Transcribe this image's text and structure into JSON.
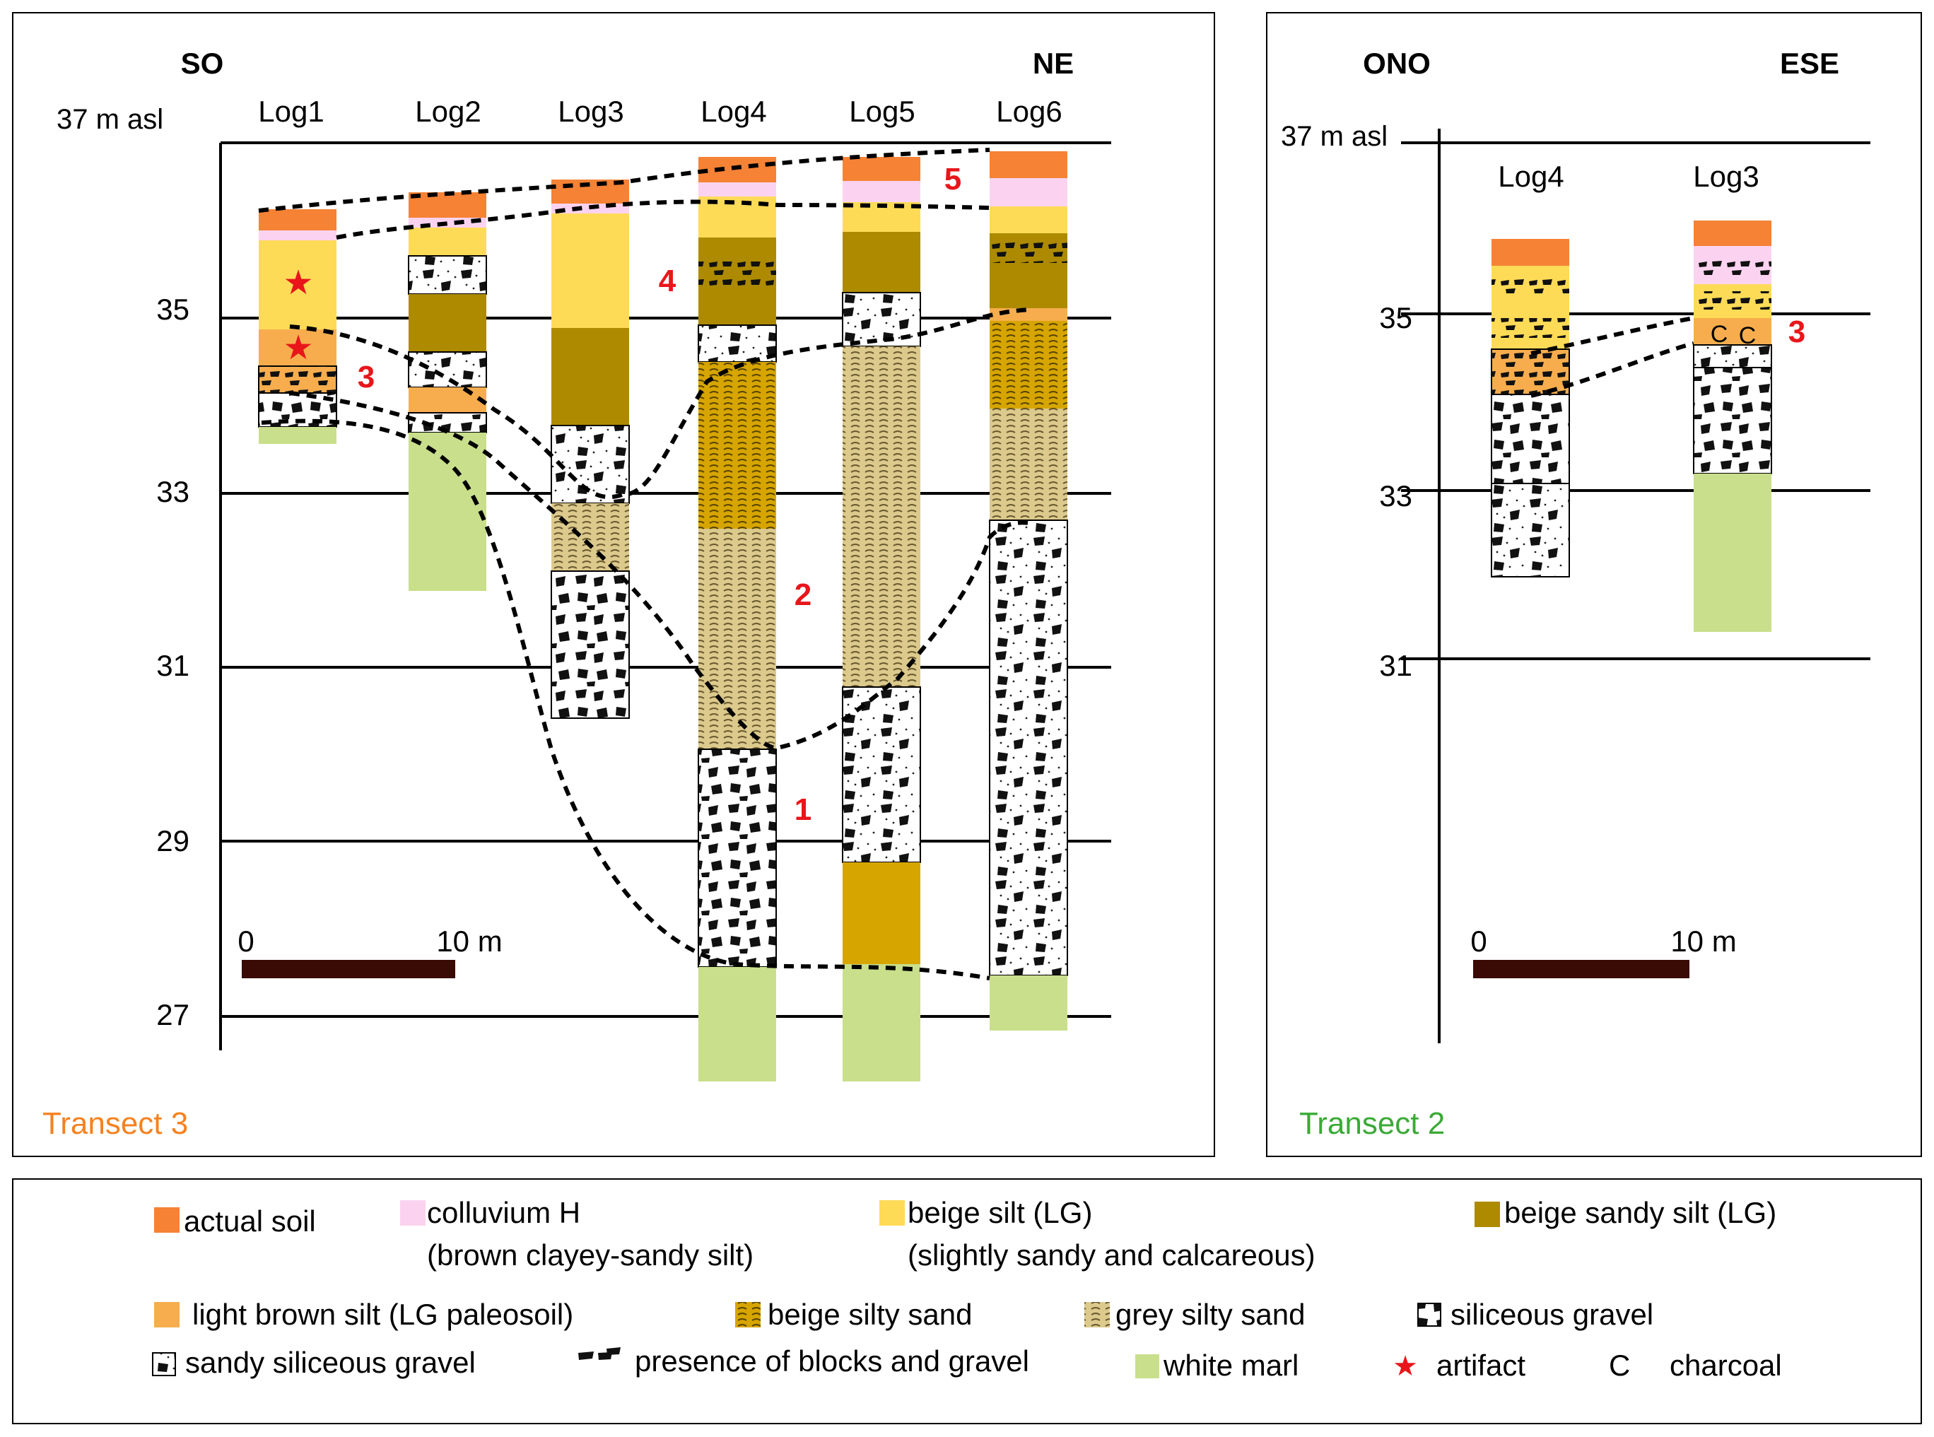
{
  "transect3": {
    "title": "Transect 3",
    "title_color": "#f58220",
    "left_direction": "SO",
    "right_direction": "NE",
    "elevation_label": "37 m asl",
    "y_ticks": [
      "35",
      "33",
      "31",
      "29",
      "27"
    ],
    "logs": [
      "Log1",
      "Log2",
      "Log3",
      "Log4",
      "Log5",
      "Log6"
    ],
    "unit_numbers": [
      "1",
      "2",
      "3",
      "4",
      "5"
    ],
    "scale": {
      "start": "0",
      "end": "10 m"
    }
  },
  "transect2": {
    "title": "Transect 2",
    "title_color": "#3aaa35",
    "left_direction": "ONO",
    "right_direction": "ESE",
    "elevation_label": "37 m asl",
    "y_ticks": [
      "35",
      "33",
      "31"
    ],
    "logs": [
      "Log4",
      "Log3"
    ],
    "unit_number": "3",
    "charcoal_marks": [
      "C",
      "C"
    ],
    "scale": {
      "start": "0",
      "end": "10 m"
    }
  },
  "legend": {
    "actual_soil": "actual soil",
    "colluvium_1": "colluvium H",
    "colluvium_2": "(brown clayey-sandy silt)",
    "beige_silt_1": "beige silt (LG)",
    "beige_silt_2": "(slightly sandy and calcareous)",
    "beige_sandy_silt": "beige sandy silt (LG)",
    "light_brown_silt": "light brown silt (LG paleosoil)",
    "beige_silty_sand": "beige silty sand",
    "grey_silty_sand": "grey silty sand",
    "siliceous_gravel": "siliceous gravel",
    "sandy_siliceous_gravel": "sandy siliceous gravel",
    "blocks": "presence of blocks and gravel",
    "white_marl": "white marl",
    "artifact_symbol": "★",
    "artifact": "artifact",
    "charcoal_symbol": "C",
    "charcoal": "charcoal"
  },
  "colors": {
    "actual_soil": "#f58235",
    "colluvium": "#fbd3f0",
    "beige_silt": "#fedb57",
    "beige_sandy_silt": "#ad8a00",
    "light_brown_silt": "#f7ad4e",
    "beige_silty_sand": "#d7a500",
    "grey_silty_sand": "#dcca8d",
    "white_marl": "#c9df8c",
    "scale_bar": "#3a0a05",
    "unit_number": "#e8161b"
  }
}
